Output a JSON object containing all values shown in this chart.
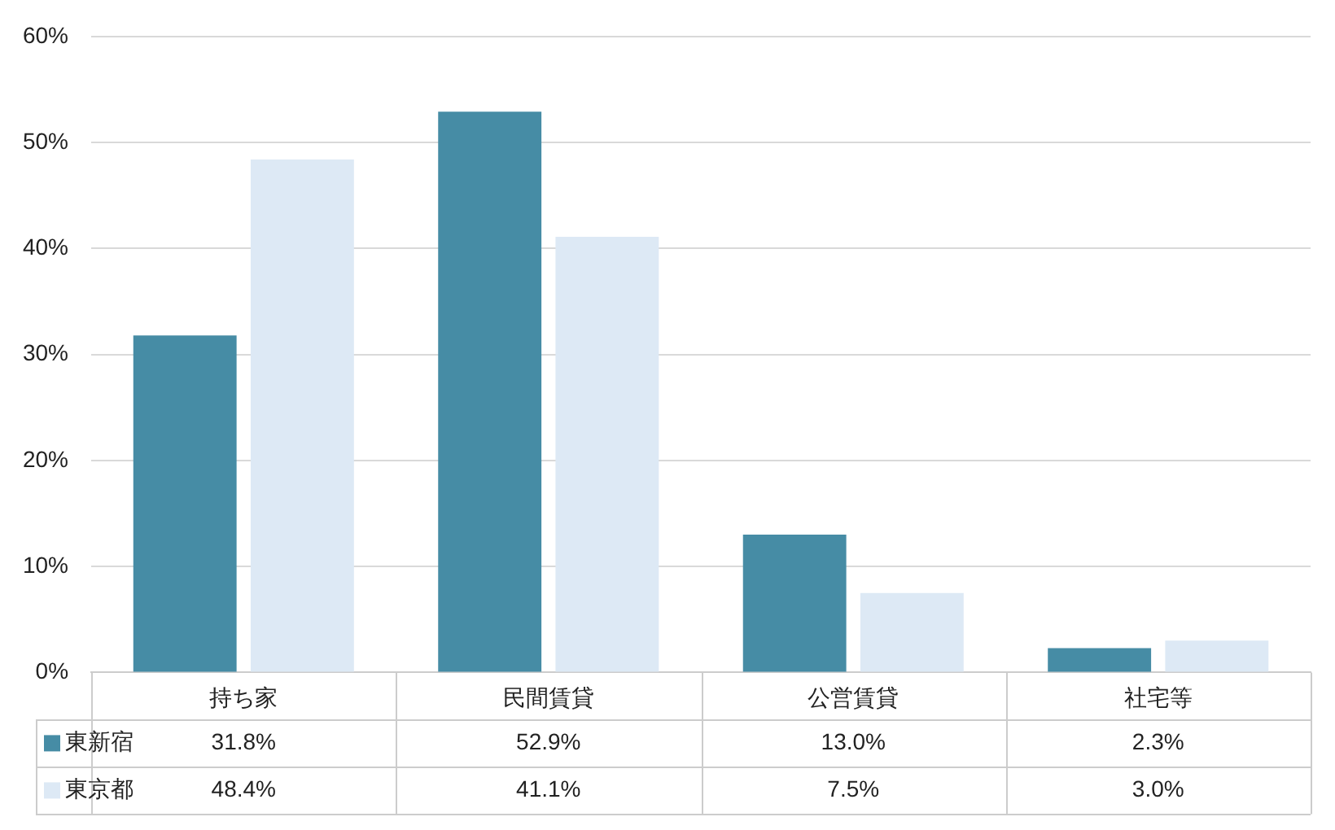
{
  "chart_data": {
    "type": "bar",
    "categories": [
      "持ち家",
      "民間賃貸",
      "公営賃貸",
      "社宅等"
    ],
    "series": [
      {
        "name": "東新宿",
        "color": "#468ca5",
        "values": [
          31.8,
          52.9,
          13.0,
          2.3
        ],
        "value_labels": [
          "31.8%",
          "52.9%",
          "13.0%",
          "2.3%"
        ]
      },
      {
        "name": "東京都",
        "color": "#dde9f5",
        "values": [
          48.4,
          41.1,
          7.5,
          3.0
        ],
        "value_labels": [
          "48.4%",
          "41.1%",
          "7.5%",
          "3.0%"
        ]
      }
    ],
    "ylim": [
      0,
      60
    ],
    "yticks": [
      {
        "value": 0,
        "label": "0%"
      },
      {
        "value": 10,
        "label": "10%"
      },
      {
        "value": 20,
        "label": "20%"
      },
      {
        "value": 30,
        "label": "30%"
      },
      {
        "value": 40,
        "label": "40%"
      },
      {
        "value": 50,
        "label": "50%"
      },
      {
        "value": 60,
        "label": "60%"
      }
    ],
    "grid": "y",
    "legend": "bottom left"
  }
}
